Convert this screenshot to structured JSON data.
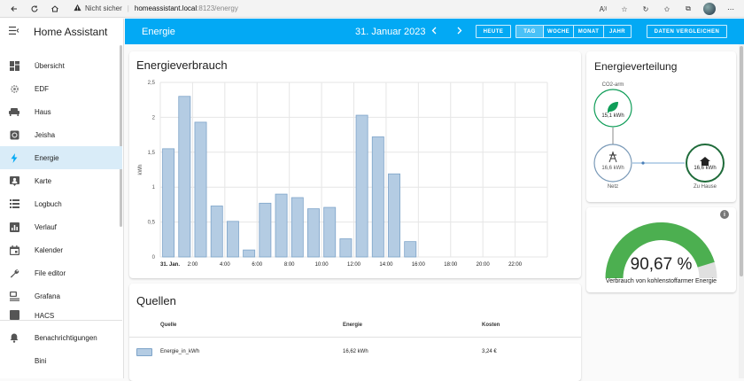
{
  "browser": {
    "security_label": "Nicht sicher",
    "url_host": "homeassistant.local",
    "url_path": ":8123/energy"
  },
  "sidebar": {
    "title": "Home Assistant",
    "items": [
      {
        "label": "Übersicht",
        "icon": "view-dashboard-icon"
      },
      {
        "label": "EDF",
        "icon": "cog-icon"
      },
      {
        "label": "Haus",
        "icon": "sofa-icon"
      },
      {
        "label": "Jeisha",
        "icon": "device-icon"
      },
      {
        "label": "Energie",
        "icon": "lightning-bolt-icon"
      },
      {
        "label": "Karte",
        "icon": "account-box-icon"
      },
      {
        "label": "Logbuch",
        "icon": "format-list-icon"
      },
      {
        "label": "Verlauf",
        "icon": "chart-box-icon"
      },
      {
        "label": "Kalender",
        "icon": "calendar-icon"
      },
      {
        "label": "File editor",
        "icon": "wrench-icon"
      },
      {
        "label": "Grafana",
        "icon": "grafana-icon"
      },
      {
        "label": "HACS",
        "icon": "hacs-icon"
      }
    ],
    "bottom_items": [
      {
        "label": "Benachrichtigungen",
        "icon": "bell-icon"
      },
      {
        "label": "Bini",
        "icon": "user-initial"
      }
    ]
  },
  "header": {
    "title": "Energie",
    "date": "31. Januar 2023",
    "today_button": "HEUTE",
    "periods": [
      "TAG",
      "WOCHE",
      "MONAT",
      "JAHR"
    ],
    "active_period": "TAG",
    "compare_button": "DATEN VERGLEICHEN"
  },
  "consumption": {
    "title": "Energieverbrauch"
  },
  "chart_data": {
    "type": "bar",
    "title": "Energieverbrauch",
    "ylabel": "kWh",
    "xlabel": "",
    "ylim": [
      0,
      2.5
    ],
    "yticks": [
      "0",
      "0,5",
      "1",
      "1,5",
      "2",
      "2,5"
    ],
    "ytick_values": [
      0,
      0.5,
      1,
      1.5,
      2,
      2.5
    ],
    "xtick_labels": [
      "31. Jan.",
      "2:00",
      "4:00",
      "6:00",
      "8:00",
      "10:00",
      "12:00",
      "14:00",
      "16:00",
      "18:00",
      "20:00",
      "22:00"
    ],
    "xtick_hours": [
      0,
      2,
      4,
      6,
      8,
      10,
      12,
      14,
      16,
      18,
      20,
      22
    ],
    "hours": [
      0,
      1,
      2,
      3,
      4,
      5,
      6,
      7,
      8,
      9,
      10,
      11,
      12,
      13,
      14,
      15
    ],
    "values": [
      1.55,
      2.3,
      1.93,
      0.73,
      0.51,
      0.1,
      0.77,
      0.9,
      0.85,
      0.69,
      0.71,
      0.26,
      2.03,
      1.72,
      1.19,
      0.22
    ],
    "series": [
      {
        "name": "Energie_in_kWh",
        "color": "#b4cce3",
        "border": "#7ea4c9"
      }
    ],
    "grid": true
  },
  "sources": {
    "title": "Quellen",
    "headers": {
      "source": "Quelle",
      "energy": "Energie",
      "cost": "Kosten"
    },
    "rows": [
      {
        "source": "Energie_in_kWh",
        "energy": "16,62 kWh",
        "cost": "3,24 €"
      }
    ]
  },
  "distribution": {
    "title": "Energieverteilung",
    "low_carbon_label": "CO2-arm",
    "low_carbon_value": "15,1 kWh",
    "grid_value": "16,6 kWh",
    "grid_label": "Netz",
    "home_value": "16,6 kWh",
    "home_label": "Zu Hause"
  },
  "gauge": {
    "value_text": "90,67 %",
    "value": 90.67,
    "label": "Verbrauch von kohlenstoffarmer Energie"
  },
  "colors": {
    "accent": "#03a9f4",
    "bar": "#b4cce3",
    "gauge_fill": "#4caf50",
    "gauge_track": "#e0e0e0",
    "low_carbon": "#0f9d58",
    "home": "#1f6b3a"
  }
}
